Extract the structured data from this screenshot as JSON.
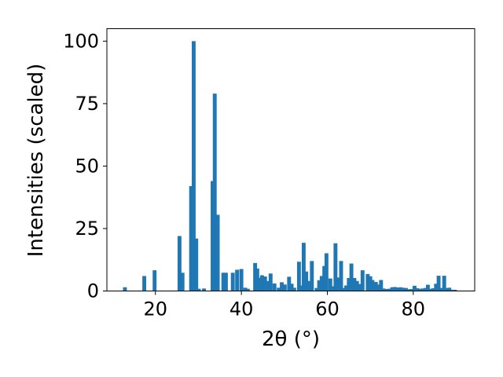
{
  "chart_data": {
    "type": "bar",
    "title": "",
    "xlabel": "2θ (°)",
    "ylabel": "Intensities (scaled)",
    "xlim": [
      8.7,
      94.3
    ],
    "ylim": [
      0,
      105
    ],
    "xticks": [
      20,
      40,
      60,
      80
    ],
    "yticks": [
      0,
      25,
      50,
      75,
      100
    ],
    "bar_width": 0.9,
    "bar_color": "#1f77b4",
    "grid": false,
    "legend": "none",
    "x": [
      12.9,
      17.4,
      19.8,
      25.6,
      26.3,
      28.3,
      28.9,
      29.5,
      30.1,
      31.3,
      33.3,
      33.8,
      34.5,
      35.8,
      36.4,
      38.0,
      39.0,
      40.0,
      40.9,
      41.5,
      43.2,
      43.7,
      44.3,
      44.8,
      45.5,
      46.2,
      46.8,
      47.7,
      48.7,
      49.4,
      50.1,
      51.1,
      51.7,
      52.3,
      53.4,
      54.0,
      54.5,
      55.1,
      55.8,
      56.4,
      57.5,
      58.1,
      58.7,
      59.3,
      59.8,
      60.7,
      61.3,
      61.9,
      62.6,
      63.2,
      63.8,
      64.4,
      65.0,
      65.6,
      66.3,
      66.9,
      67.6,
      68.2,
      69.4,
      70.0,
      70.5,
      71.3,
      71.9,
      72.5,
      73.1,
      73.8,
      74.4,
      75.1,
      75.7,
      76.3,
      77.0,
      77.6,
      78.3,
      79.0,
      79.6,
      80.3,
      80.9,
      81.6,
      82.2,
      82.8,
      83.4,
      84.1,
      84.7,
      85.3,
      85.9,
      86.6,
      87.2,
      87.8,
      88.4,
      89.1,
      89.7
    ],
    "values": [
      1.5,
      6,
      8.3,
      22,
      7.3,
      42,
      100,
      21,
      0.9,
      1.0,
      44,
      79,
      30.5,
      7.3,
      7.3,
      7.3,
      8.5,
      8.8,
      1.3,
      0.9,
      11.2,
      9.0,
      5.3,
      6.3,
      5.8,
      4.0,
      7.0,
      3.0,
      1.3,
      3.5,
      2.6,
      5.7,
      2.9,
      1.3,
      11.7,
      2.2,
      19.3,
      7.8,
      4.0,
      12.0,
      1.2,
      4.3,
      6.0,
      10.0,
      15.1,
      5.0,
      1.9,
      19.1,
      5.4,
      12.0,
      1.2,
      2.2,
      5.2,
      11.0,
      5.2,
      4.0,
      2.8,
      8.3,
      6.8,
      5.9,
      4.4,
      3.6,
      2.6,
      4.4,
      1.0,
      0.8,
      0.9,
      1.5,
      1.6,
      1.4,
      1.5,
      1.3,
      1.2,
      0.7,
      0.8,
      2.1,
      1.1,
      0.9,
      1.0,
      1.2,
      2.5,
      0.9,
      1.1,
      2.9,
      6.1,
      1.2,
      6.1,
      1.2,
      1.3,
      0.5,
      0.5
    ]
  }
}
